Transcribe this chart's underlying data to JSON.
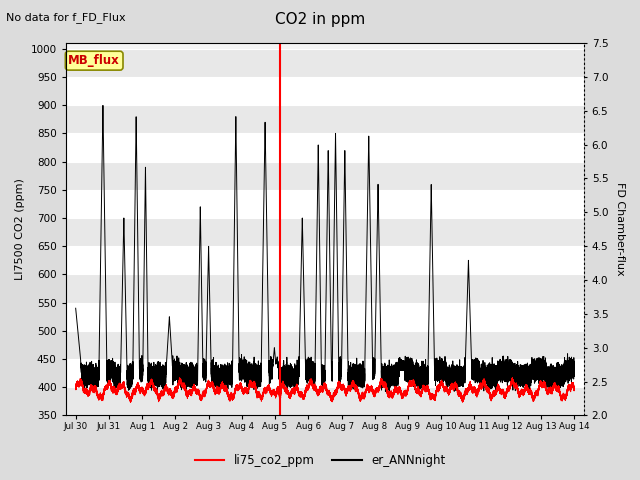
{
  "title": "CO2 in ppm",
  "subtitle": "No data for f_FD_Flux",
  "ylabel_left": "LI7500 CO2 (ppm)",
  "ylabel_right": "FD Chamber-flux",
  "ylim_left": [
    350,
    1010
  ],
  "ylim_right": [
    2.0,
    7.5
  ],
  "yticks_left": [
    350,
    400,
    450,
    500,
    550,
    600,
    650,
    700,
    750,
    800,
    850,
    900,
    950,
    1000
  ],
  "yticks_right": [
    2.0,
    2.5,
    3.0,
    3.5,
    4.0,
    4.5,
    5.0,
    5.5,
    6.0,
    6.5,
    7.0,
    7.5
  ],
  "xtick_labels": [
    "Jul 30",
    "Jul 31",
    "Aug 1",
    "Aug 2",
    "Aug 3",
    "Aug 4",
    "Aug 5",
    "Aug 6",
    "Aug 7",
    "Aug 8",
    "Aug 9",
    "Aug 10",
    "Aug 11",
    "Aug 12",
    "Aug 13",
    "Aug 14"
  ],
  "vline_x": 6.15,
  "vline_color": "#ff0000",
  "line1_color": "#ff0000",
  "line2_color": "#000000",
  "legend_label1": "li75_co2_ppm",
  "legend_label2": "er_ANNnight",
  "mb_flux_box_color": "#ffff99",
  "mb_flux_text_color": "#cc0000",
  "bg_color": "#ffffff",
  "stripe_even": "#e8e8e8",
  "stripe_odd": "#f5f5f5",
  "fig_bg": "#dcdcdc"
}
